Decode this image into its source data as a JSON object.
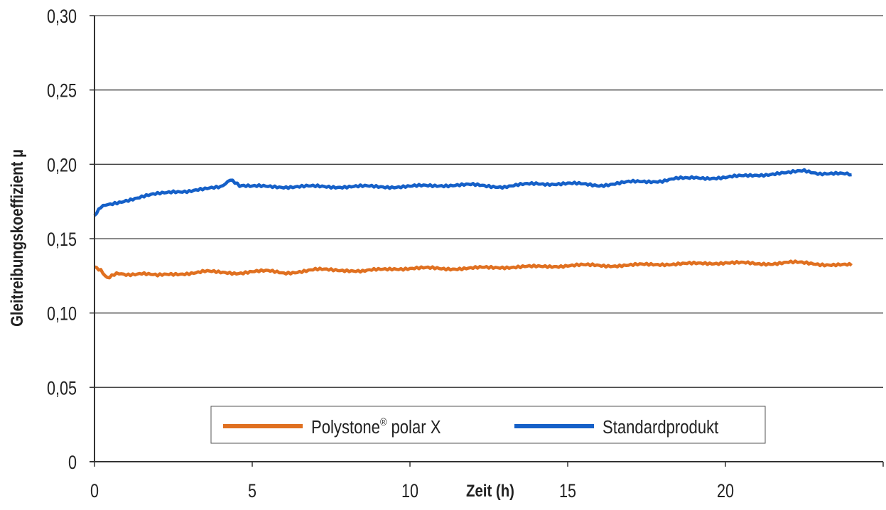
{
  "chart_data": {
    "type": "line",
    "title": "",
    "xlabel": "Zeit (h)",
    "ylabel": "Gleitreibungskoeffizient µ",
    "xlim": [
      0,
      25
    ],
    "ylim": [
      0,
      0.3
    ],
    "x_ticks": [
      0,
      5,
      10,
      15,
      20
    ],
    "x_tick_labels": [
      "0",
      "5",
      "10",
      "15",
      "20"
    ],
    "y_ticks": [
      0,
      0.05,
      0.1,
      0.15,
      0.2,
      0.25,
      0.3
    ],
    "y_tick_labels": [
      "0",
      "0,05",
      "0,10",
      "0,15",
      "0,20",
      "0,25",
      "0,30"
    ],
    "grid": "horizontal",
    "legend_position": "bottom-center",
    "series": [
      {
        "name": "Polystone® polar X",
        "name_main": "Polystone",
        "name_sup": "®",
        "name_rest": " polar X",
        "color": "#E07020",
        "x": [
          0,
          0.2,
          0.4,
          0.7,
          1,
          1.5,
          2,
          2.5,
          3,
          3.5,
          4,
          4.5,
          5,
          5.5,
          6,
          6.5,
          7,
          7.5,
          8,
          8.5,
          9,
          9.5,
          10,
          11,
          12,
          13,
          14,
          15,
          16,
          17,
          18,
          19,
          20,
          21,
          22,
          23,
          24
        ],
        "y": [
          0.131,
          0.129,
          0.124,
          0.126,
          0.126,
          0.127,
          0.125,
          0.126,
          0.127,
          0.128,
          0.127,
          0.127,
          0.128,
          0.128,
          0.127,
          0.128,
          0.129,
          0.129,
          0.129,
          0.128,
          0.129,
          0.13,
          0.13,
          0.13,
          0.13,
          0.131,
          0.131,
          0.132,
          0.132,
          0.132,
          0.133,
          0.133,
          0.134,
          0.133,
          0.134,
          0.133,
          0.132
        ]
      },
      {
        "name": "Standardprodukt",
        "color": "#1560C8",
        "x": [
          0,
          0.2,
          0.5,
          1,
          1.5,
          2,
          2.5,
          3,
          3.5,
          4,
          4.3,
          4.6,
          5,
          6,
          7,
          8,
          9,
          10,
          11,
          12,
          13,
          14,
          15,
          16,
          17,
          18,
          18.8,
          19,
          20,
          21,
          22,
          22.5,
          23,
          24
        ],
        "y": [
          0.165,
          0.171,
          0.173,
          0.176,
          0.178,
          0.18,
          0.182,
          0.182,
          0.183,
          0.185,
          0.19,
          0.185,
          0.185,
          0.185,
          0.185,
          0.185,
          0.185,
          0.185,
          0.186,
          0.186,
          0.185,
          0.187,
          0.187,
          0.186,
          0.188,
          0.189,
          0.191,
          0.191,
          0.191,
          0.193,
          0.194,
          0.196,
          0.194,
          0.193
        ]
      }
    ]
  }
}
